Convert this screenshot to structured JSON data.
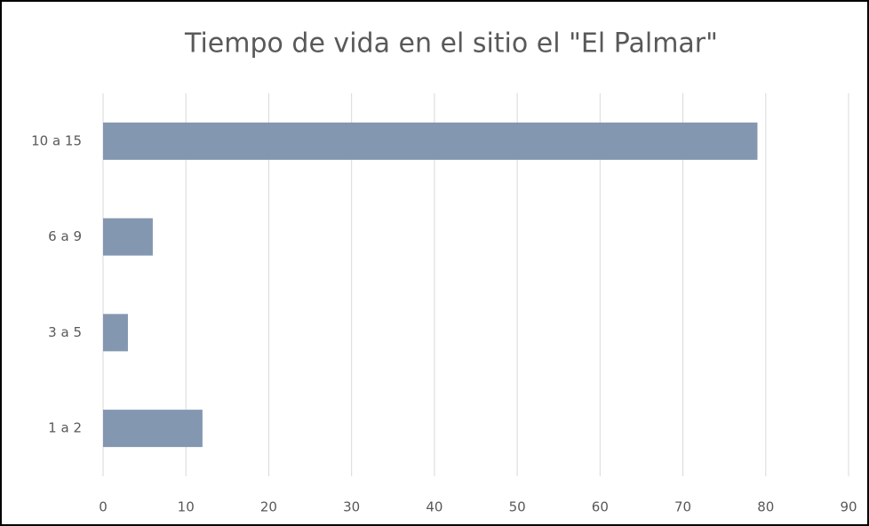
{
  "chart_data": {
    "type": "barh",
    "title": "Tiempo de vida en el sitio el \"El Palmar\"",
    "categories": [
      "10 a 15",
      "6 a 9",
      "3 a 5",
      "1 a 2"
    ],
    "values": [
      79,
      6,
      3,
      12
    ],
    "color": "#8497b0",
    "xlim": [
      0,
      90
    ],
    "xticks": [
      0,
      10,
      20,
      30,
      40,
      50,
      60,
      70,
      80,
      90
    ],
    "grid": true
  }
}
